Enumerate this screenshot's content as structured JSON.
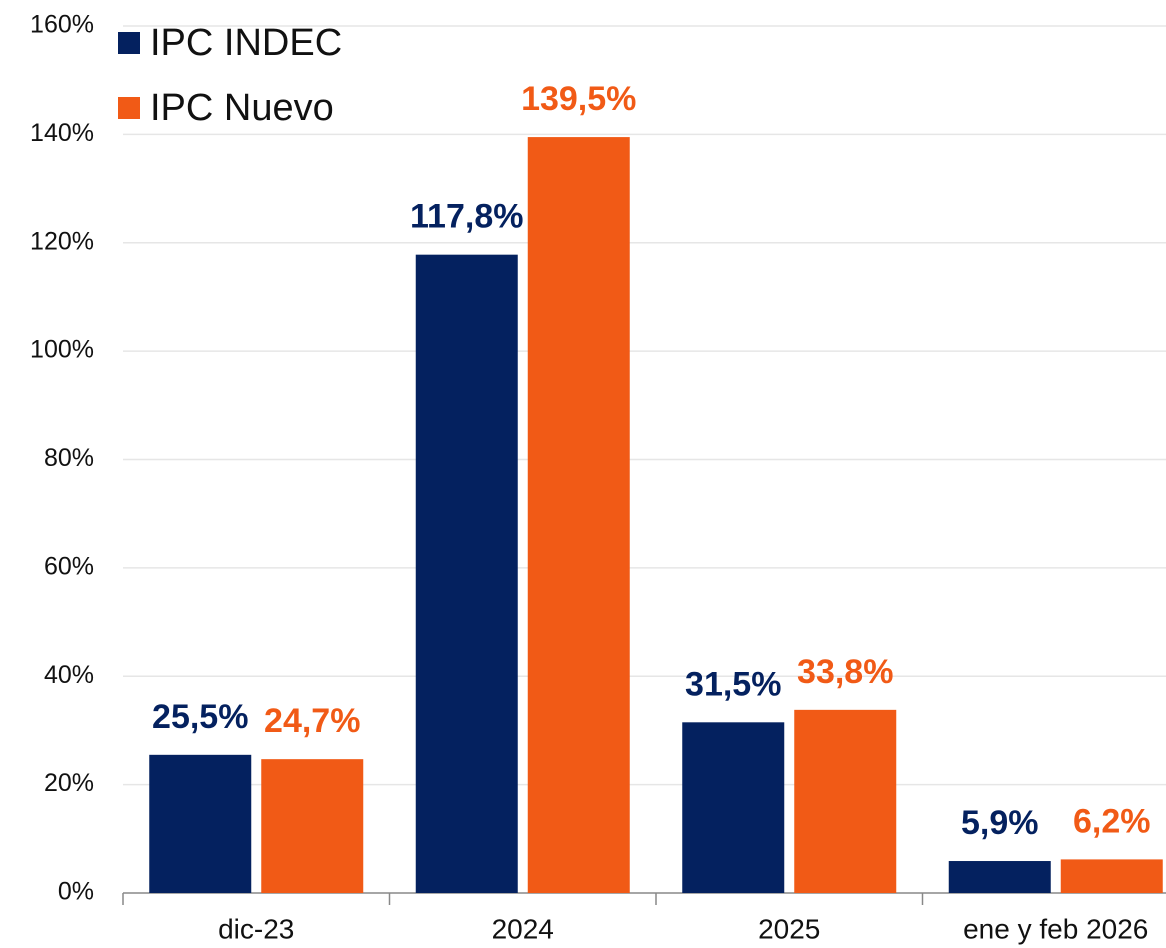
{
  "chart_data": {
    "type": "bar",
    "categories": [
      "dic-23",
      "2024",
      "2025",
      "ene y feb 2026"
    ],
    "series": [
      {
        "name": "IPC INDEC",
        "color": "#04215f",
        "values": [
          25.5,
          117.8,
          31.5,
          5.9
        ],
        "value_labels": [
          "25,5%",
          "117,8%",
          "31,5%",
          "5,9%"
        ]
      },
      {
        "name": "IPC Nuevo",
        "color": "#f15a16",
        "values": [
          24.7,
          139.5,
          33.8,
          6.2
        ],
        "value_labels": [
          "24,7%",
          "139,5%",
          "33,8%",
          "6,2%"
        ]
      }
    ],
    "ylim": [
      0,
      160
    ],
    "yticks": [
      {
        "value": 0,
        "label": "0%"
      },
      {
        "value": 20,
        "label": "20%"
      },
      {
        "value": 40,
        "label": "40%"
      },
      {
        "value": 60,
        "label": "60%"
      },
      {
        "value": 80,
        "label": "80%"
      },
      {
        "value": 100,
        "label": "100%"
      },
      {
        "value": 120,
        "label": "120%"
      },
      {
        "value": 140,
        "label": "140%"
      },
      {
        "value": 160,
        "label": "160%"
      }
    ],
    "grid": true,
    "legend": "top-left"
  }
}
